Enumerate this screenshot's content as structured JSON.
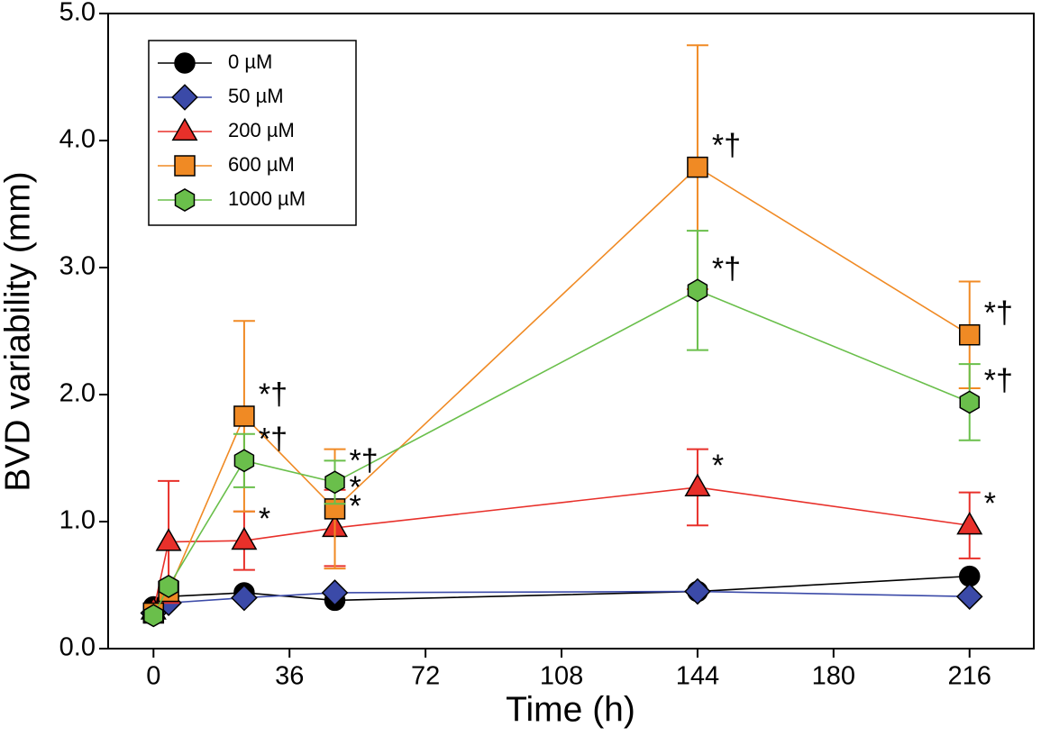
{
  "chart_data": {
    "type": "line",
    "x_label": "Time (h)",
    "y_label": "BVD variability (mm)",
    "x": [
      0,
      4,
      24,
      48,
      144,
      216
    ],
    "xlim": [
      -12,
      233
    ],
    "xticks": [
      0,
      36,
      72,
      108,
      144,
      180,
      216
    ],
    "ylim": [
      0,
      5
    ],
    "yticks": [
      {
        "value": 0,
        "label": "0.0"
      },
      {
        "value": 1,
        "label": "1.0"
      },
      {
        "value": 2,
        "label": "2.0"
      },
      {
        "value": 3,
        "label": "3.0"
      },
      {
        "value": 4,
        "label": "4.0"
      },
      {
        "value": 5,
        "label": "5.0"
      }
    ],
    "legend": "upper left",
    "series": [
      {
        "name": "0 µM",
        "color": "#000000",
        "marker": "circle",
        "values": [
          0.33,
          0.41,
          0.44,
          0.38,
          0.45,
          0.57
        ]
      },
      {
        "name": "50 µM",
        "color": "#3b4aa8",
        "marker": "diamond",
        "values": [
          0.28,
          0.36,
          0.4,
          0.44,
          0.45,
          0.41
        ]
      },
      {
        "name": "200 µM",
        "color": "#e8302a",
        "marker": "triangle",
        "values": [
          0.3,
          0.84,
          0.85,
          0.95,
          1.27,
          0.97
        ],
        "errors": [
          null,
          0.48,
          0.23,
          0.3,
          0.3,
          0.26
        ],
        "annotations": [
          null,
          null,
          "*",
          "*",
          "*",
          "*"
        ]
      },
      {
        "name": "600 µM",
        "color": "#f08a24",
        "marker": "square",
        "values": [
          0.28,
          0.45,
          1.83,
          1.1,
          3.79,
          2.47
        ],
        "errors": [
          null,
          null,
          0.75,
          0.47,
          0.96,
          0.42
        ],
        "annotations": [
          null,
          null,
          "*†",
          "*",
          "*†",
          "*†"
        ]
      },
      {
        "name": "1000 µM",
        "color": "#6abf4b",
        "marker": "hexagon",
        "values": [
          0.26,
          0.49,
          1.48,
          1.31,
          2.82,
          1.94
        ],
        "errors": [
          null,
          null,
          0.21,
          0.17,
          0.47,
          0.3
        ],
        "annotations": [
          null,
          null,
          "*†",
          "*†",
          "*†",
          "*†"
        ]
      }
    ]
  }
}
